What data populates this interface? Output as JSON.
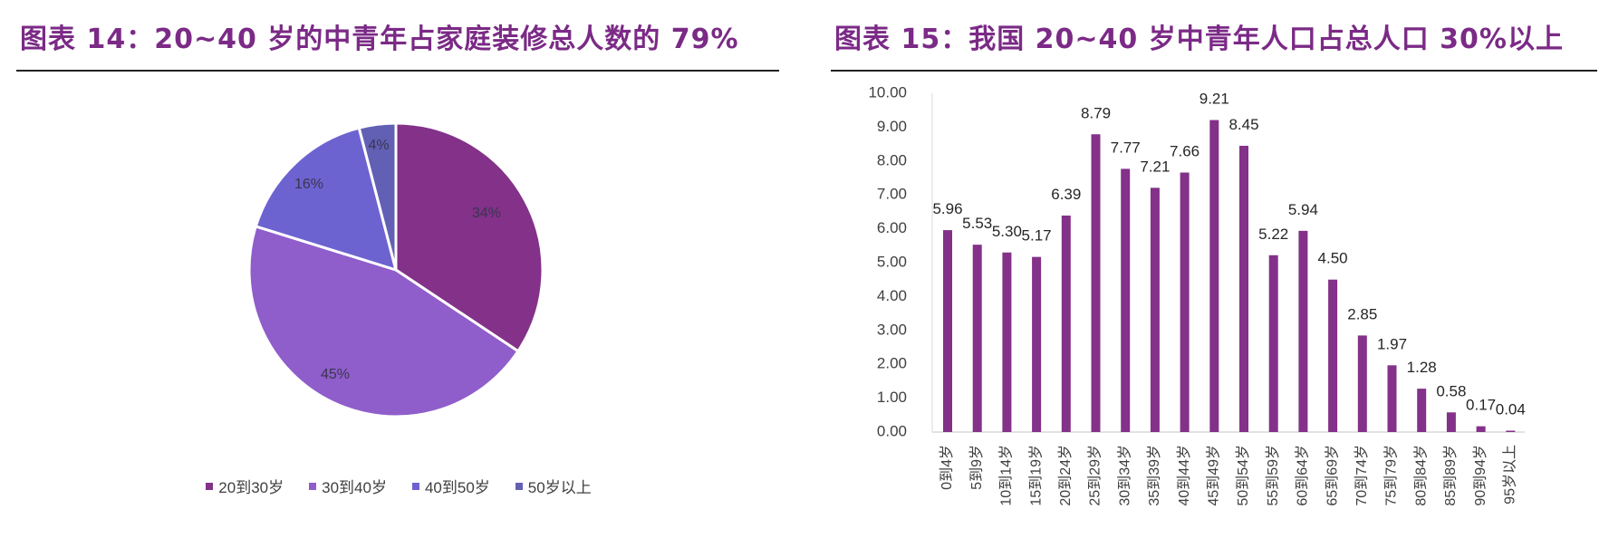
{
  "left": {
    "title": "图表 14：20~40 岁的中青年占家庭装修总人数的 79%"
  },
  "right": {
    "title": "图表 15：我国 20~40 岁中青年人口占总人口 30%以上"
  },
  "colors": {
    "title": "#7b2a86",
    "bar": "#833189",
    "pie": [
      "#833189",
      "#8f5ecb",
      "#6d63d0",
      "#6260b4"
    ]
  },
  "chart_data": [
    {
      "type": "pie",
      "title": "图表 14：20~40 岁的中青年占家庭装修总人数的 79%",
      "categories": [
        "20到30岁",
        "30到40岁",
        "40到50岁",
        "50岁以上"
      ],
      "values": [
        34,
        45,
        16,
        4
      ],
      "labels": [
        "34%",
        "45%",
        "16%",
        "4%"
      ],
      "legend_position": "bottom"
    },
    {
      "type": "bar",
      "title": "图表 15：我国 20~40 岁中青年人口占总人口 30%以上",
      "categories": [
        "0到4岁",
        "5到9岁",
        "10到14岁",
        "15到19岁",
        "20到24岁",
        "25到29岁",
        "30到34岁",
        "35到39岁",
        "40到44岁",
        "45到49岁",
        "50到54岁",
        "55到59岁",
        "60到64岁",
        "65到69岁",
        "70到74岁",
        "75到79岁",
        "80到84岁",
        "85到89岁",
        "90到94岁",
        "95岁以上"
      ],
      "values": [
        5.96,
        5.53,
        5.3,
        5.17,
        6.39,
        8.79,
        7.77,
        7.21,
        7.66,
        9.21,
        8.45,
        5.22,
        5.94,
        4.5,
        2.85,
        1.97,
        1.28,
        0.58,
        0.17,
        0.04
      ],
      "value_labels": [
        "5.96",
        "5.53",
        "5.30",
        "5.17",
        "6.39",
        "8.79",
        "7.77",
        "7.21",
        "7.66",
        "9.21",
        "8.45",
        "5.22",
        "5.94",
        "4.50",
        "2.85",
        "1.97",
        "1.28",
        "0.58",
        "0.17",
        "0.04"
      ],
      "yticks": [
        "0.00",
        "1.00",
        "2.00",
        "3.00",
        "4.00",
        "5.00",
        "6.00",
        "7.00",
        "8.00",
        "9.00",
        "10.00"
      ],
      "ylim": [
        0,
        10
      ],
      "xlabel": "",
      "ylabel": "",
      "grid": false
    }
  ]
}
